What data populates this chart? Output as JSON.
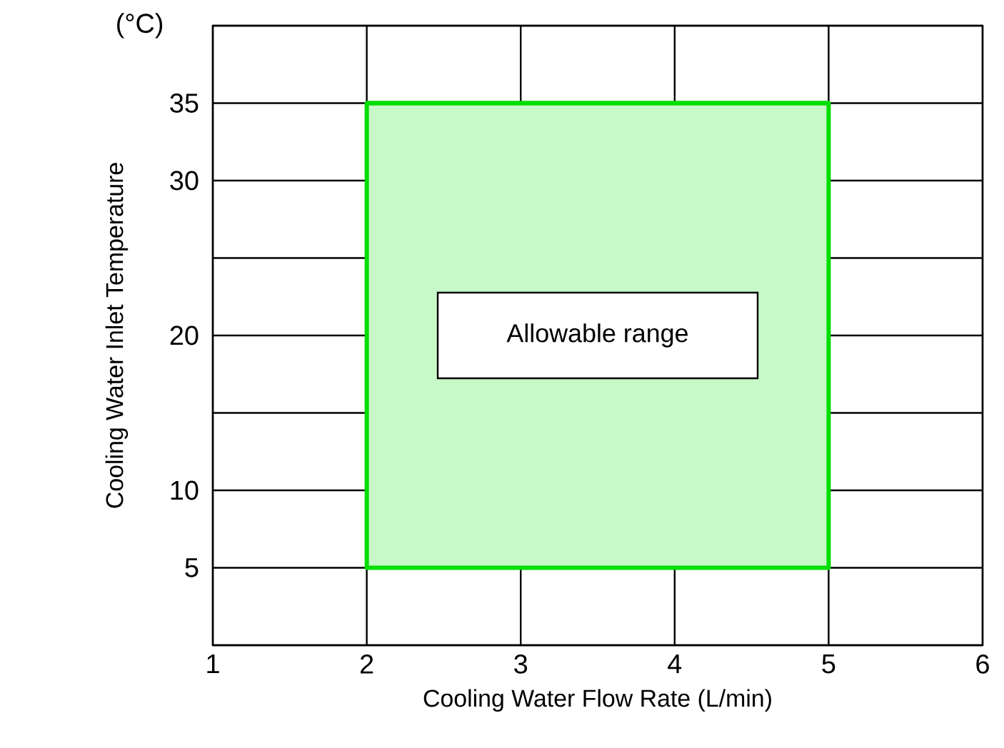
{
  "chart_data": {
    "type": "line",
    "xlabel": "Cooling Water Flow Rate (L/min)",
    "ylabel": "Cooling Water Inlet Temperature",
    "xlim": [
      1,
      6
    ],
    "ylim": [
      0,
      40
    ],
    "xticks": [
      1,
      2,
      3,
      4,
      5,
      6
    ],
    "yticks": [
      {
        "value": 0,
        "label": null
      },
      5,
      10,
      {
        "value": 15,
        "label": null
      },
      20,
      {
        "value": 25,
        "label": null
      },
      30,
      35,
      {
        "value": 40,
        "label": null
      }
    ],
    "grid": true,
    "series": [
      {
        "color": "#00dd00",
        "x": [
          2,
          5
        ],
        "values": [
          35,
          35
        ],
        "lower": [
          5,
          5
        ],
        "upper": [
          35,
          35
        ]
      }
    ],
    "annotations": [
      "(°C)",
      "Allowable range"
    ]
  }
}
